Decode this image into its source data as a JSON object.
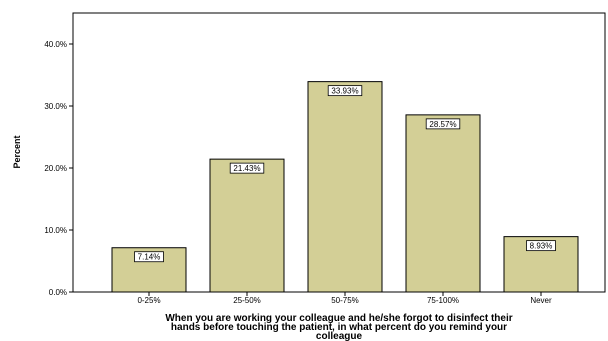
{
  "chart_data": {
    "type": "bar",
    "categories": [
      "0-25%",
      "25-50%",
      "50-75%",
      "75-100%",
      "Never"
    ],
    "values": [
      7.14,
      21.43,
      33.93,
      28.57,
      8.93
    ],
    "data_labels": [
      "7.14%",
      "21.43%",
      "33.93%",
      "28.57%",
      "8.93%"
    ],
    "ylabel": "Percent",
    "xlabel": [
      "When you are working your colleague and he/she forgot to disinfect their",
      "hands before touching the patient, in what percent do you remind your",
      "colleague"
    ],
    "ylim": [
      0,
      45
    ],
    "yticks": [
      0,
      10,
      20,
      30,
      40
    ],
    "ytick_labels": [
      "0.0%",
      "10.0%",
      "20.0%",
      "30.0%",
      "40.0%"
    ],
    "grid": false,
    "bar_color": "#d3cf96",
    "bar_edge_color": "#000000"
  }
}
